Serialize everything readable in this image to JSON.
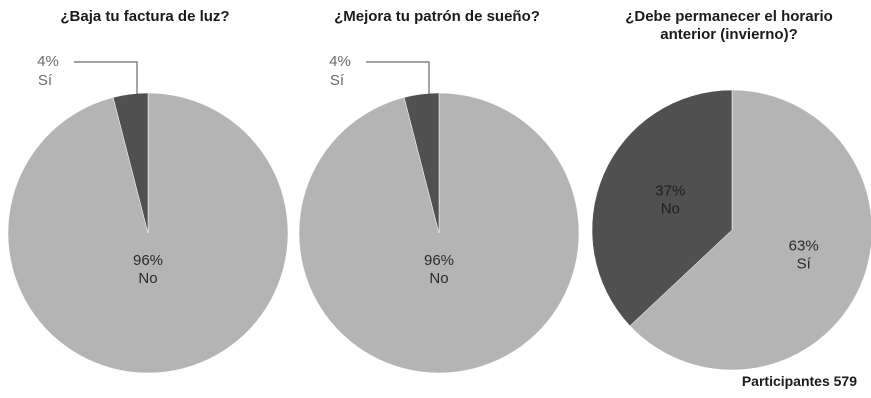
{
  "chart_data": [
    {
      "type": "pie",
      "title": "¿Baja tu factura de luz?",
      "slices": [
        {
          "label": "No",
          "value": 96,
          "value_label": "96%",
          "color": "#b4b4b4"
        },
        {
          "label": "Sí",
          "value": 4,
          "value_label": "4%",
          "color": "#505050"
        }
      ]
    },
    {
      "type": "pie",
      "title": "¿Mejora tu patrón de sueño?",
      "slices": [
        {
          "label": "No",
          "value": 96,
          "value_label": "96%",
          "color": "#b4b4b4"
        },
        {
          "label": "Sí",
          "value": 4,
          "value_label": "4%",
          "color": "#505050"
        }
      ]
    },
    {
      "type": "pie",
      "title": "¿Debe permanecer el horario anterior (invierno)?",
      "title_lines": [
        "¿Debe permanecer el horario",
        "anterior (invierno)?"
      ],
      "slices": [
        {
          "label": "Sí",
          "value": 63,
          "value_label": "63%",
          "color": "#b4b4b4"
        },
        {
          "label": "No",
          "value": 37,
          "value_label": "37%",
          "color": "#505050"
        }
      ]
    }
  ],
  "footer": "Participantes 579"
}
